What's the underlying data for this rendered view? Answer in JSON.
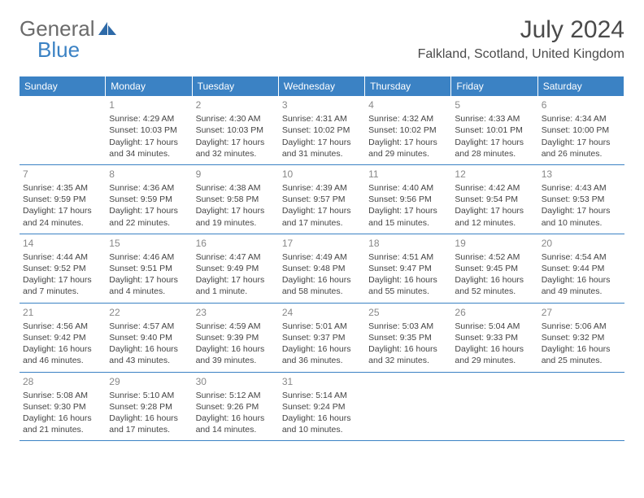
{
  "brand": {
    "part1": "General",
    "part2": "Blue"
  },
  "title": "July 2024",
  "location": "Falkland, Scotland, United Kingdom",
  "colors": {
    "header_bg": "#3b82c4",
    "header_text": "#ffffff",
    "border": "#3b82c4",
    "text": "#444",
    "daynum": "#888"
  },
  "weekdays": [
    "Sunday",
    "Monday",
    "Tuesday",
    "Wednesday",
    "Thursday",
    "Friday",
    "Saturday"
  ],
  "cells": [
    {
      "empty": true
    },
    {
      "day": "1",
      "sunrise": "Sunrise: 4:29 AM",
      "sunset": "Sunset: 10:03 PM",
      "daylight": "Daylight: 17 hours and 34 minutes."
    },
    {
      "day": "2",
      "sunrise": "Sunrise: 4:30 AM",
      "sunset": "Sunset: 10:03 PM",
      "daylight": "Daylight: 17 hours and 32 minutes."
    },
    {
      "day": "3",
      "sunrise": "Sunrise: 4:31 AM",
      "sunset": "Sunset: 10:02 PM",
      "daylight": "Daylight: 17 hours and 31 minutes."
    },
    {
      "day": "4",
      "sunrise": "Sunrise: 4:32 AM",
      "sunset": "Sunset: 10:02 PM",
      "daylight": "Daylight: 17 hours and 29 minutes."
    },
    {
      "day": "5",
      "sunrise": "Sunrise: 4:33 AM",
      "sunset": "Sunset: 10:01 PM",
      "daylight": "Daylight: 17 hours and 28 minutes."
    },
    {
      "day": "6",
      "sunrise": "Sunrise: 4:34 AM",
      "sunset": "Sunset: 10:00 PM",
      "daylight": "Daylight: 17 hours and 26 minutes."
    },
    {
      "day": "7",
      "sunrise": "Sunrise: 4:35 AM",
      "sunset": "Sunset: 9:59 PM",
      "daylight": "Daylight: 17 hours and 24 minutes."
    },
    {
      "day": "8",
      "sunrise": "Sunrise: 4:36 AM",
      "sunset": "Sunset: 9:59 PM",
      "daylight": "Daylight: 17 hours and 22 minutes."
    },
    {
      "day": "9",
      "sunrise": "Sunrise: 4:38 AM",
      "sunset": "Sunset: 9:58 PM",
      "daylight": "Daylight: 17 hours and 19 minutes."
    },
    {
      "day": "10",
      "sunrise": "Sunrise: 4:39 AM",
      "sunset": "Sunset: 9:57 PM",
      "daylight": "Daylight: 17 hours and 17 minutes."
    },
    {
      "day": "11",
      "sunrise": "Sunrise: 4:40 AM",
      "sunset": "Sunset: 9:56 PM",
      "daylight": "Daylight: 17 hours and 15 minutes."
    },
    {
      "day": "12",
      "sunrise": "Sunrise: 4:42 AM",
      "sunset": "Sunset: 9:54 PM",
      "daylight": "Daylight: 17 hours and 12 minutes."
    },
    {
      "day": "13",
      "sunrise": "Sunrise: 4:43 AM",
      "sunset": "Sunset: 9:53 PM",
      "daylight": "Daylight: 17 hours and 10 minutes."
    },
    {
      "day": "14",
      "sunrise": "Sunrise: 4:44 AM",
      "sunset": "Sunset: 9:52 PM",
      "daylight": "Daylight: 17 hours and 7 minutes."
    },
    {
      "day": "15",
      "sunrise": "Sunrise: 4:46 AM",
      "sunset": "Sunset: 9:51 PM",
      "daylight": "Daylight: 17 hours and 4 minutes."
    },
    {
      "day": "16",
      "sunrise": "Sunrise: 4:47 AM",
      "sunset": "Sunset: 9:49 PM",
      "daylight": "Daylight: 17 hours and 1 minute."
    },
    {
      "day": "17",
      "sunrise": "Sunrise: 4:49 AM",
      "sunset": "Sunset: 9:48 PM",
      "daylight": "Daylight: 16 hours and 58 minutes."
    },
    {
      "day": "18",
      "sunrise": "Sunrise: 4:51 AM",
      "sunset": "Sunset: 9:47 PM",
      "daylight": "Daylight: 16 hours and 55 minutes."
    },
    {
      "day": "19",
      "sunrise": "Sunrise: 4:52 AM",
      "sunset": "Sunset: 9:45 PM",
      "daylight": "Daylight: 16 hours and 52 minutes."
    },
    {
      "day": "20",
      "sunrise": "Sunrise: 4:54 AM",
      "sunset": "Sunset: 9:44 PM",
      "daylight": "Daylight: 16 hours and 49 minutes."
    },
    {
      "day": "21",
      "sunrise": "Sunrise: 4:56 AM",
      "sunset": "Sunset: 9:42 PM",
      "daylight": "Daylight: 16 hours and 46 minutes."
    },
    {
      "day": "22",
      "sunrise": "Sunrise: 4:57 AM",
      "sunset": "Sunset: 9:40 PM",
      "daylight": "Daylight: 16 hours and 43 minutes."
    },
    {
      "day": "23",
      "sunrise": "Sunrise: 4:59 AM",
      "sunset": "Sunset: 9:39 PM",
      "daylight": "Daylight: 16 hours and 39 minutes."
    },
    {
      "day": "24",
      "sunrise": "Sunrise: 5:01 AM",
      "sunset": "Sunset: 9:37 PM",
      "daylight": "Daylight: 16 hours and 36 minutes."
    },
    {
      "day": "25",
      "sunrise": "Sunrise: 5:03 AM",
      "sunset": "Sunset: 9:35 PM",
      "daylight": "Daylight: 16 hours and 32 minutes."
    },
    {
      "day": "26",
      "sunrise": "Sunrise: 5:04 AM",
      "sunset": "Sunset: 9:33 PM",
      "daylight": "Daylight: 16 hours and 29 minutes."
    },
    {
      "day": "27",
      "sunrise": "Sunrise: 5:06 AM",
      "sunset": "Sunset: 9:32 PM",
      "daylight": "Daylight: 16 hours and 25 minutes."
    },
    {
      "day": "28",
      "sunrise": "Sunrise: 5:08 AM",
      "sunset": "Sunset: 9:30 PM",
      "daylight": "Daylight: 16 hours and 21 minutes."
    },
    {
      "day": "29",
      "sunrise": "Sunrise: 5:10 AM",
      "sunset": "Sunset: 9:28 PM",
      "daylight": "Daylight: 16 hours and 17 minutes."
    },
    {
      "day": "30",
      "sunrise": "Sunrise: 5:12 AM",
      "sunset": "Sunset: 9:26 PM",
      "daylight": "Daylight: 16 hours and 14 minutes."
    },
    {
      "day": "31",
      "sunrise": "Sunrise: 5:14 AM",
      "sunset": "Sunset: 9:24 PM",
      "daylight": "Daylight: 16 hours and 10 minutes."
    },
    {
      "empty": true
    },
    {
      "empty": true
    },
    {
      "empty": true
    }
  ]
}
